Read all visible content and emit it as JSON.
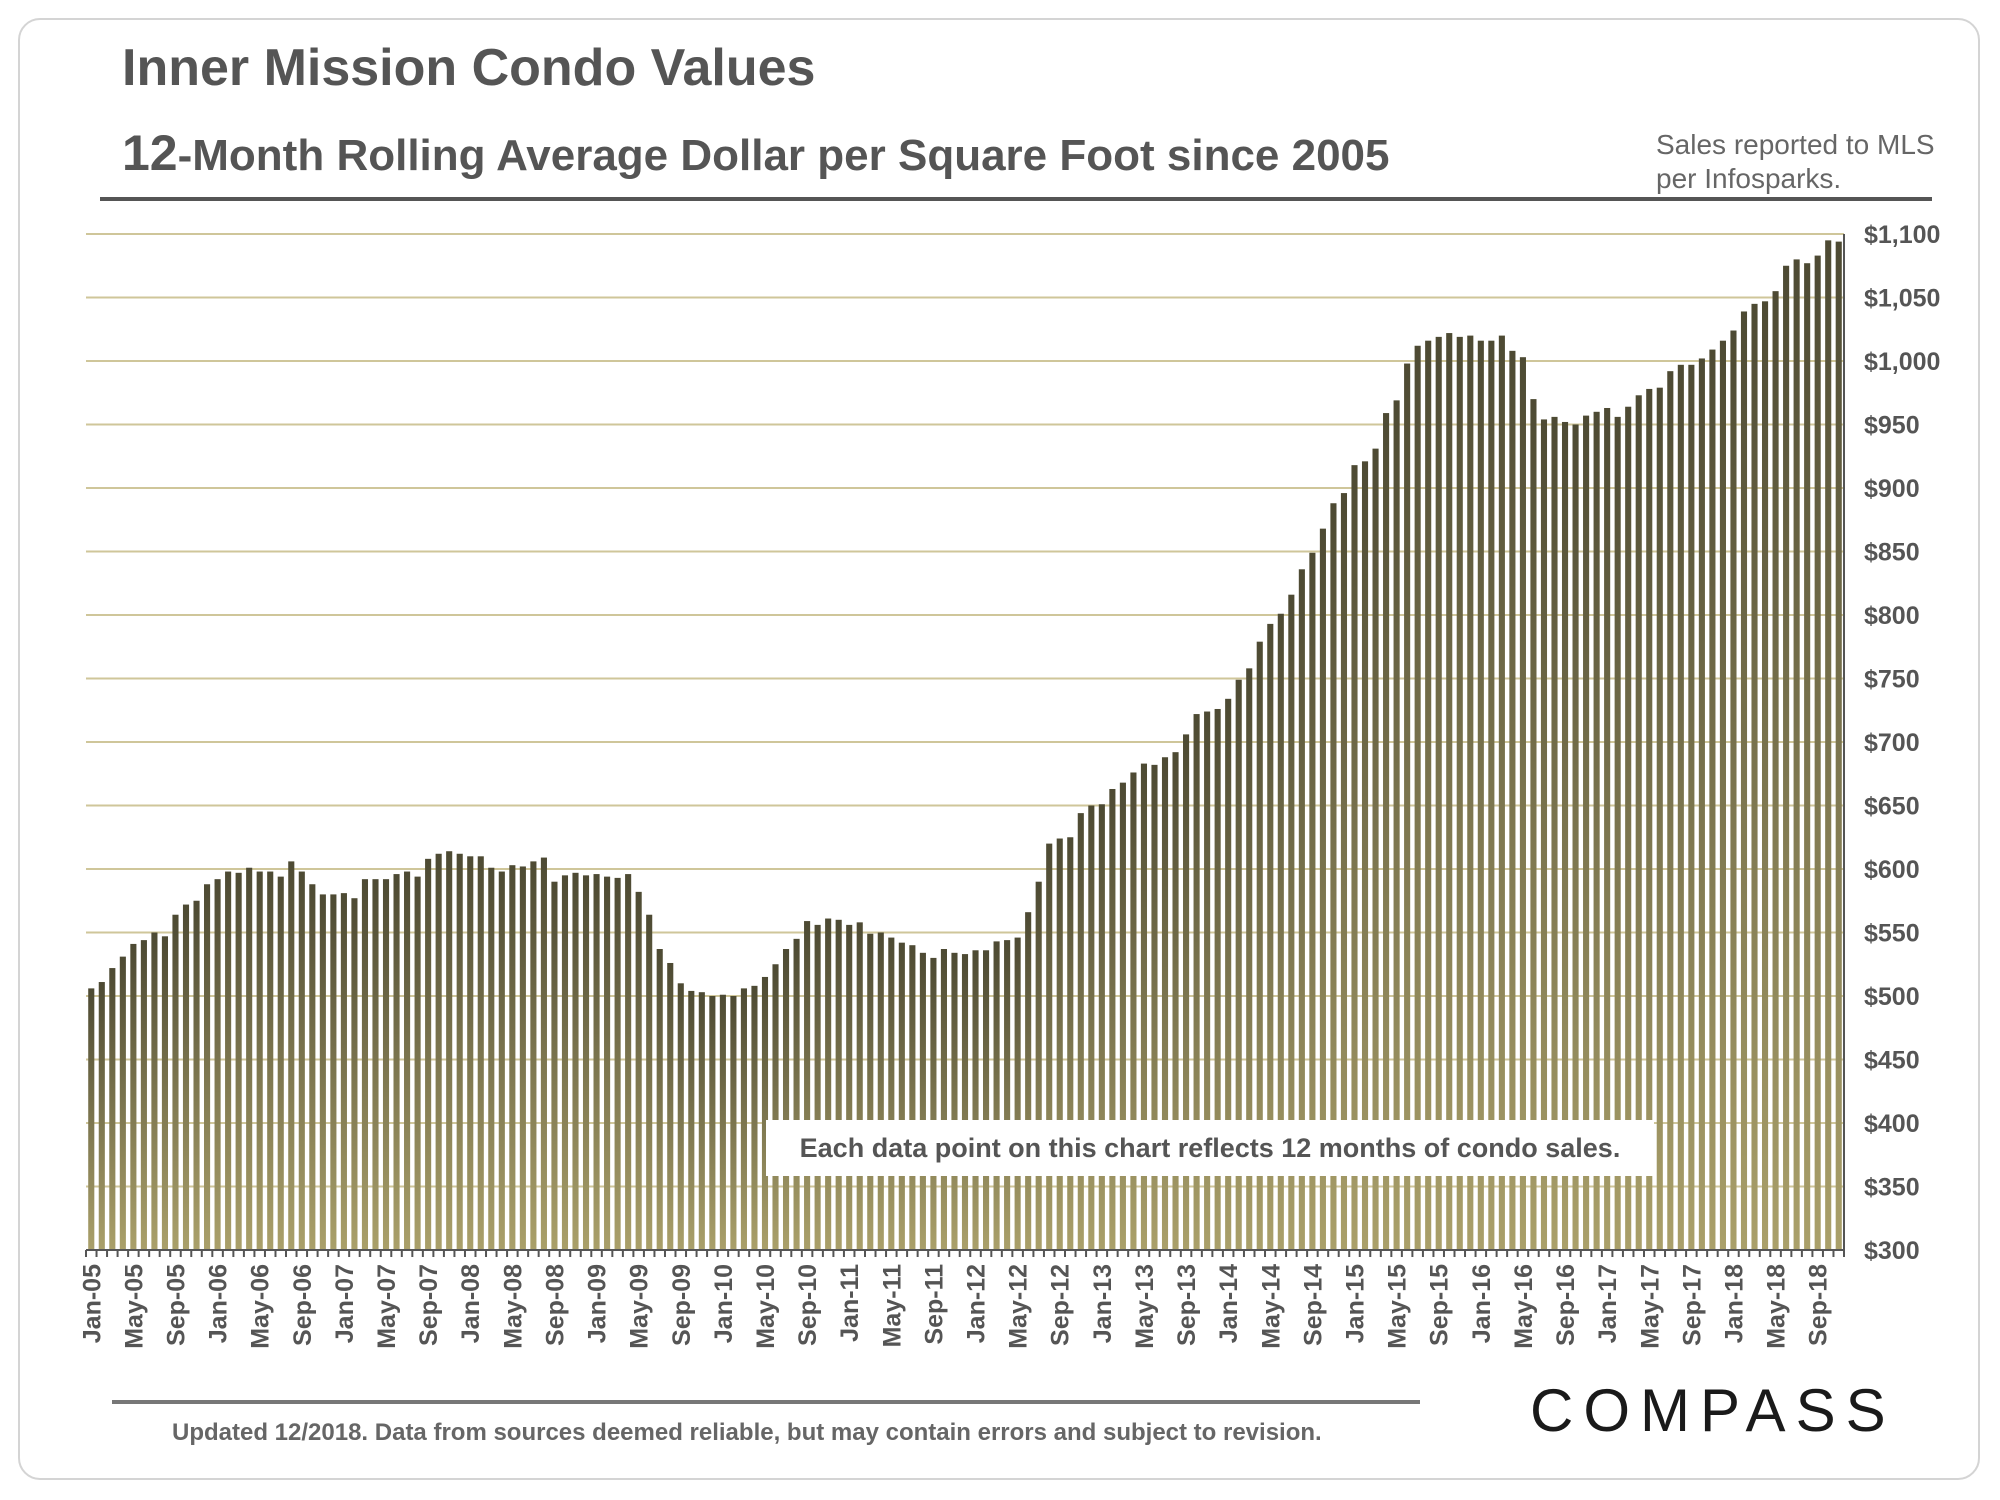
{
  "header": {
    "title": "Inner Mission Condo Values",
    "subtitle_lead": "12",
    "subtitle_rest": "-Month Rolling Average Dollar per Square Foot since 2005",
    "source_note": "Sales reported to MLS per Infosparks."
  },
  "annotation": "Each data point on this chart reflects 12 months of condo sales.",
  "footer": {
    "note": "Updated 12/2018. Data from sources deemed reliable, but may contain errors and subject to revision.",
    "brand": "COMPASS"
  },
  "colors": {
    "bar_top": "#4d4a33",
    "bar_bottom": "#aaa06a",
    "grid": "#cfc69a",
    "text": "#555555"
  },
  "chart_data": {
    "type": "bar",
    "title": "Inner Mission Condo Values",
    "subtitle": "12-Month Rolling Average Dollar per Square Foot since 2005",
    "ylabel": "",
    "xlabel": "",
    "ylim": [
      300,
      1100
    ],
    "y_ticks": [
      300,
      350,
      400,
      450,
      500,
      550,
      600,
      650,
      700,
      750,
      800,
      850,
      900,
      950,
      1000,
      1050,
      1100
    ],
    "y_tick_labels": [
      "$300",
      "$350",
      "$400",
      "$450",
      "$500",
      "$550",
      "$600",
      "$650",
      "$700",
      "$750",
      "$800",
      "$850",
      "$900",
      "$950",
      "$1,000",
      "$1,050",
      "$1,100"
    ],
    "x_tick_labels": [
      {
        "index": 0,
        "label": "Jan-05"
      },
      {
        "index": 4,
        "label": "May-05"
      },
      {
        "index": 8,
        "label": "Sep-05"
      },
      {
        "index": 12,
        "label": "Jan-06"
      },
      {
        "index": 16,
        "label": "May-06"
      },
      {
        "index": 20,
        "label": "Sep-06"
      },
      {
        "index": 24,
        "label": "Jan-07"
      },
      {
        "index": 28,
        "label": "May-07"
      },
      {
        "index": 32,
        "label": "Sep-07"
      },
      {
        "index": 36,
        "label": "Jan-08"
      },
      {
        "index": 40,
        "label": "May-08"
      },
      {
        "index": 44,
        "label": "Sep-08"
      },
      {
        "index": 48,
        "label": "Jan-09"
      },
      {
        "index": 52,
        "label": "May-09"
      },
      {
        "index": 56,
        "label": "Sep-09"
      },
      {
        "index": 60,
        "label": "Jan-10"
      },
      {
        "index": 64,
        "label": "May-10"
      },
      {
        "index": 68,
        "label": "Sep-10"
      },
      {
        "index": 72,
        "label": "Jan-11"
      },
      {
        "index": 76,
        "label": "May-11"
      },
      {
        "index": 80,
        "label": "Sep-11"
      },
      {
        "index": 84,
        "label": "Jan-12"
      },
      {
        "index": 88,
        "label": "May-12"
      },
      {
        "index": 92,
        "label": "Sep-12"
      },
      {
        "index": 96,
        "label": "Jan-13"
      },
      {
        "index": 100,
        "label": "May-13"
      },
      {
        "index": 104,
        "label": "Sep-13"
      },
      {
        "index": 108,
        "label": "Jan-14"
      },
      {
        "index": 112,
        "label": "May-14"
      },
      {
        "index": 116,
        "label": "Sep-14"
      },
      {
        "index": 120,
        "label": "Jan-15"
      },
      {
        "index": 124,
        "label": "May-15"
      },
      {
        "index": 128,
        "label": "Sep-15"
      },
      {
        "index": 132,
        "label": "Jan-16"
      },
      {
        "index": 136,
        "label": "May-16"
      },
      {
        "index": 140,
        "label": "Sep-16"
      },
      {
        "index": 144,
        "label": "Jan-17"
      },
      {
        "index": 148,
        "label": "May-17"
      },
      {
        "index": 152,
        "label": "Sep-17"
      },
      {
        "index": 156,
        "label": "Jan-18"
      },
      {
        "index": 160,
        "label": "May-18"
      },
      {
        "index": 164,
        "label": "Sep-18"
      }
    ],
    "values": [
      506,
      511,
      522,
      531,
      541,
      544,
      550,
      547,
      564,
      572,
      575,
      588,
      592,
      598,
      597,
      601,
      598,
      598,
      594,
      606,
      598,
      588,
      580,
      580,
      581,
      577,
      592,
      592,
      592,
      596,
      598,
      594,
      608,
      612,
      614,
      612,
      610,
      610,
      601,
      598,
      603,
      602,
      606,
      609,
      590,
      595,
      597,
      595,
      596,
      594,
      593,
      596,
      582,
      564,
      537,
      526,
      510,
      504,
      503,
      500,
      501,
      500,
      506,
      508,
      515,
      525,
      537,
      545,
      559,
      556,
      561,
      560,
      556,
      558,
      549,
      550,
      546,
      542,
      540,
      534,
      530,
      537,
      534,
      533,
      536,
      536,
      543,
      544,
      546,
      566,
      590,
      620,
      624,
      625,
      644,
      650,
      651,
      663,
      668,
      676,
      683,
      682,
      688,
      692,
      706,
      722,
      724,
      726,
      734,
      749,
      758,
      779,
      793,
      801,
      816,
      836,
      849,
      868,
      888,
      896,
      918,
      921,
      931,
      959,
      969,
      998,
      1012,
      1016,
      1019,
      1022,
      1019,
      1020,
      1016,
      1016,
      1020,
      1008,
      1003,
      970,
      954,
      956,
      952,
      950,
      957,
      960,
      963,
      956,
      964,
      973,
      978,
      979,
      992,
      997,
      997,
      1002,
      1009,
      1016,
      1024,
      1039,
      1045,
      1047,
      1055,
      1075,
      1080,
      1077,
      1083,
      1095,
      1094
    ]
  }
}
